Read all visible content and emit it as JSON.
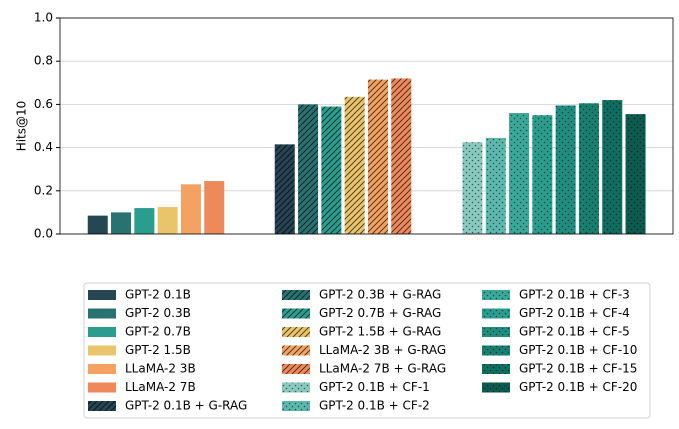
{
  "chart_data": {
    "type": "bar",
    "ylabel": "Hits@10",
    "categories": [
      null,
      null,
      null
    ],
    "ylim": [
      0,
      1
    ],
    "yticks": [
      {
        "value": 0,
        "label": "0.0"
      },
      0.2,
      0.4,
      0.6,
      0.8,
      {
        "value": 1,
        "label": "1.0"
      }
    ],
    "grid": true,
    "legend": "bottom",
    "series": [
      {
        "name": "GPT-2 0.1B",
        "color": "#264653",
        "hatch": "none",
        "values": [
          0.085,
          null,
          null
        ]
      },
      {
        "name": "GPT-2 0.3B",
        "color": "#287271",
        "hatch": "none",
        "values": [
          0.1,
          null,
          null
        ]
      },
      {
        "name": "GPT-2 0.7B",
        "color": "#2a9d8f",
        "hatch": "none",
        "values": [
          0.12,
          null,
          null
        ]
      },
      {
        "name": "GPT-2 1.5B",
        "color": "#e9c46a",
        "hatch": "none",
        "values": [
          0.125,
          null,
          null
        ]
      },
      {
        "name": "LLaMA-2 3B",
        "color": "#f4a261",
        "hatch": "none",
        "values": [
          0.23,
          null,
          null
        ]
      },
      {
        "name": "LLaMA-2 7B",
        "color": "#ee8959",
        "hatch": "none",
        "values": [
          0.245,
          null,
          null
        ]
      },
      {
        "name": "GPT-2 0.1B + G-RAG",
        "color": "#264653",
        "hatch": "//",
        "values": [
          null,
          0.415,
          null
        ]
      },
      {
        "name": "GPT-2 0.3B + G-RAG",
        "color": "#287271",
        "hatch": "//",
        "values": [
          null,
          0.6,
          null
        ]
      },
      {
        "name": "GPT-2 0.7B + G-RAG",
        "color": "#2a9d8f",
        "hatch": "//",
        "values": [
          null,
          0.59,
          null
        ]
      },
      {
        "name": "GPT-2 1.5B + G-RAG",
        "color": "#e9c46a",
        "hatch": "//",
        "values": [
          null,
          0.635,
          null
        ]
      },
      {
        "name": "LLaMA-2 3B + G-RAG",
        "color": "#f4a261",
        "hatch": "//",
        "values": [
          null,
          0.715,
          null
        ]
      },
      {
        "name": "LLaMA-2 7B + G-RAG",
        "color": "#ee8959",
        "hatch": "//",
        "values": [
          null,
          0.72,
          null
        ]
      },
      {
        "name": "GPT-2 0.1B + CF-1",
        "color": "#8ac9c0",
        "hatch": ".",
        "values": [
          null,
          null,
          0.425
        ]
      },
      {
        "name": "GPT-2 0.1B + CF-2",
        "color": "#5cb8ac",
        "hatch": ".",
        "values": [
          null,
          null,
          0.445
        ]
      },
      {
        "name": "GPT-2 0.1B + CF-3",
        "color": "#3aa99a",
        "hatch": ".",
        "values": [
          null,
          null,
          0.56
        ]
      },
      {
        "name": "GPT-2 0.1B + CF-4",
        "color": "#2a9d8f",
        "hatch": ".",
        "values": [
          null,
          null,
          0.55
        ]
      },
      {
        "name": "GPT-2 0.1B + CF-5",
        "color": "#1f8e80",
        "hatch": ".",
        "values": [
          null,
          null,
          0.595
        ]
      },
      {
        "name": "GPT-2 0.1B + CF-10",
        "color": "#17806f",
        "hatch": ".",
        "values": [
          null,
          null,
          0.605
        ]
      },
      {
        "name": "GPT-2 0.1B + CF-15",
        "color": "#0f6e60",
        "hatch": ".",
        "values": [
          null,
          null,
          0.62
        ]
      },
      {
        "name": "GPT-2 0.1B + CF-20",
        "color": "#0b5b4f",
        "hatch": ".",
        "values": [
          null,
          null,
          0.555
        ]
      }
    ]
  }
}
